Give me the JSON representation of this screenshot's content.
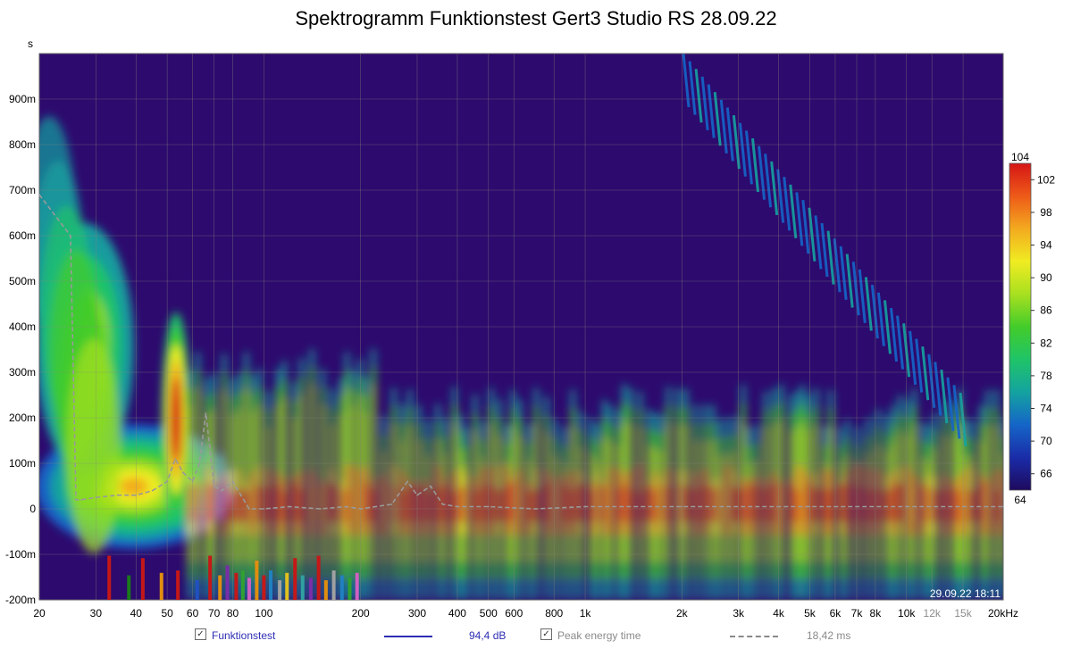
{
  "chart_data": {
    "type": "heatmap",
    "title": "Spektrogramm Funktionstest Gert3 Studio RS 28.09.22",
    "ylabel": "s",
    "xlabel": "",
    "x_scale": "log",
    "xlim": [
      20,
      20000
    ],
    "ylim": [
      -0.2,
      1.0
    ],
    "x_ticks": [
      {
        "value": 20,
        "label": "20",
        "major": true
      },
      {
        "value": 30,
        "label": "30",
        "major": true
      },
      {
        "value": 40,
        "label": "40",
        "major": true
      },
      {
        "value": 50,
        "label": "50",
        "major": true
      },
      {
        "value": 60,
        "label": "60",
        "major": true
      },
      {
        "value": 70,
        "label": "70",
        "major": true
      },
      {
        "value": 80,
        "label": "80",
        "major": true
      },
      {
        "value": 100,
        "label": "100",
        "major": true
      },
      {
        "value": 200,
        "label": "200",
        "major": true
      },
      {
        "value": 300,
        "label": "300",
        "major": true
      },
      {
        "value": 400,
        "label": "400",
        "major": true
      },
      {
        "value": 500,
        "label": "500",
        "major": true
      },
      {
        "value": 600,
        "label": "600",
        "major": true
      },
      {
        "value": 800,
        "label": "800",
        "major": true
      },
      {
        "value": 1000,
        "label": "1k",
        "major": true
      },
      {
        "value": 2000,
        "label": "2k",
        "major": true
      },
      {
        "value": 3000,
        "label": "3k",
        "major": true
      },
      {
        "value": 4000,
        "label": "4k",
        "major": true
      },
      {
        "value": 5000,
        "label": "5k",
        "major": true
      },
      {
        "value": 6000,
        "label": "6k",
        "major": true
      },
      {
        "value": 7000,
        "label": "7k",
        "major": true
      },
      {
        "value": 8000,
        "label": "8k",
        "major": true
      },
      {
        "value": 10000,
        "label": "10k",
        "major": true
      },
      {
        "value": 12000,
        "label": "12k",
        "major": false
      },
      {
        "value": 15000,
        "label": "15k",
        "major": false
      },
      {
        "value": 20000,
        "label": "20kHz",
        "major": true
      }
    ],
    "y_ticks": [
      {
        "value": 0.9,
        "label": "900m"
      },
      {
        "value": 0.8,
        "label": "800m"
      },
      {
        "value": 0.7,
        "label": "700m"
      },
      {
        "value": 0.6,
        "label": "600m"
      },
      {
        "value": 0.5,
        "label": "500m"
      },
      {
        "value": 0.4,
        "label": "400m"
      },
      {
        "value": 0.3,
        "label": "300m"
      },
      {
        "value": 0.2,
        "label": "200m"
      },
      {
        "value": 0.1,
        "label": "100m"
      },
      {
        "value": 0,
        "label": "0"
      },
      {
        "value": -0.1,
        "label": "-100m"
      },
      {
        "value": -0.2,
        "label": "-200m"
      }
    ],
    "colorbar": {
      "min": 64,
      "max": 104,
      "min_label": "64",
      "max_label": "104",
      "ticks": [
        {
          "value": 102,
          "label": "102"
        },
        {
          "value": 98,
          "label": "98"
        },
        {
          "value": 94,
          "label": "94"
        },
        {
          "value": 90,
          "label": "90"
        },
        {
          "value": 86,
          "label": "86"
        },
        {
          "value": 82,
          "label": "82"
        },
        {
          "value": 78,
          "label": "78"
        },
        {
          "value": 74,
          "label": "74"
        },
        {
          "value": 70,
          "label": "70"
        },
        {
          "value": 66,
          "label": "66"
        }
      ],
      "stops": [
        "#1e0a5e",
        "#1a2ca8",
        "#1565c8",
        "#14a3a0",
        "#1fc468",
        "#43cc2a",
        "#a8e020",
        "#f0ec22",
        "#f3aa1f",
        "#ee5a18",
        "#d51616"
      ]
    },
    "background_color": "#2d0a6e",
    "timestamp": "29.09.22 18:11",
    "series": [
      {
        "name": "Funktionstest",
        "kind": "spectrogram",
        "value_text": "94,4 dB",
        "color": "#2d2db4",
        "checked": true
      },
      {
        "name": "Peak energy time",
        "kind": "line",
        "value_text": "18,42 ms",
        "color": "#9a9a9a",
        "checked": true,
        "x": [
          20,
          25,
          26,
          27,
          30,
          35,
          40,
          45,
          50,
          53,
          56,
          60,
          63,
          66,
          70,
          74,
          80,
          90,
          100,
          120,
          150,
          180,
          200,
          250,
          280,
          300,
          330,
          360,
          400,
          500,
          700,
          1000,
          2000,
          5000,
          10000,
          20000
        ],
        "y": [
          0.69,
          0.6,
          0.02,
          0.02,
          0.025,
          0.03,
          0.03,
          0.04,
          0.06,
          0.11,
          0.08,
          0.06,
          0.1,
          0.21,
          0.05,
          0.04,
          0.06,
          0.0,
          0.0,
          0.005,
          0.0,
          0.005,
          0.0,
          0.01,
          0.06,
          0.03,
          0.05,
          0.01,
          0.005,
          0.005,
          0.0,
          0.005,
          0.005,
          0.005,
          0.005,
          0.005
        ]
      }
    ],
    "partial_bars": {
      "x": [
        33,
        38,
        42,
        48,
        54,
        62,
        68,
        73,
        77,
        82,
        86,
        90,
        95,
        100,
        105,
        112,
        118,
        125,
        132,
        140,
        148,
        156,
        165,
        175,
        185,
        195
      ],
      "level": [
        0.9,
        0.5,
        0.85,
        0.55,
        0.6,
        0.4,
        0.9,
        0.5,
        0.7,
        0.55,
        0.6,
        0.45,
        0.8,
        0.5,
        0.6,
        0.4,
        0.55,
        0.85,
        0.5,
        0.45,
        0.9,
        0.4,
        0.6,
        0.5,
        0.45,
        0.55
      ],
      "colors": [
        "#c41818",
        "#1a7a1a",
        "#c41818",
        "#e08e10",
        "#c41818",
        "#2050c0",
        "#c41818",
        "#e08e10",
        "#7a2da8",
        "#c41818",
        "#30a030",
        "#d060c0",
        "#e08e10",
        "#c41818",
        "#2080c0",
        "#a0a0a0",
        "#e0c020",
        "#c41818",
        "#30a0a0",
        "#7a2da8",
        "#c41818",
        "#e08e10",
        "#a0a0a0",
        "#2080c0",
        "#30a030",
        "#d060c0"
      ]
    },
    "legend": {
      "placement": "bottom"
    }
  }
}
